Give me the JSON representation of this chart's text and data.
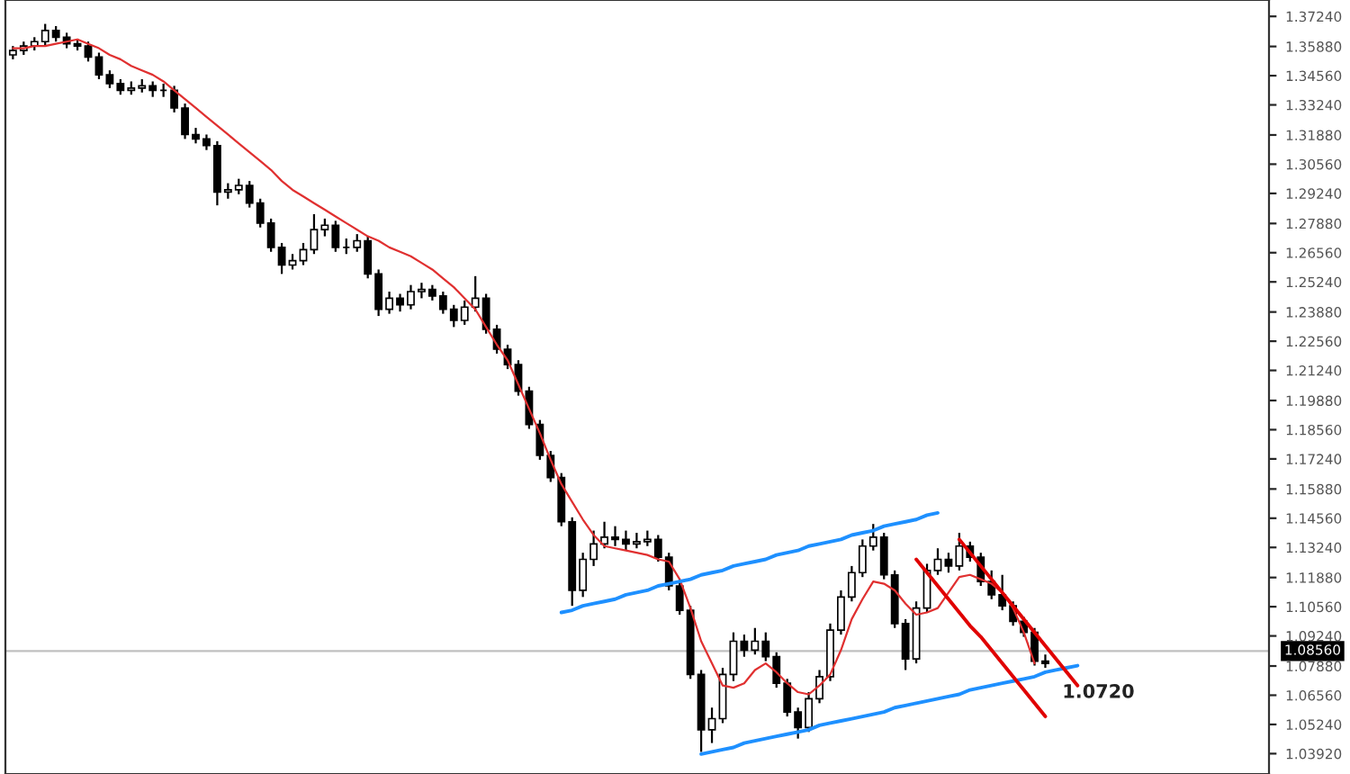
{
  "chart_data": {
    "type": "candlestick",
    "color": "#000000",
    "categories": [
      null,
      null,
      null,
      null,
      null,
      null,
      null,
      null,
      null,
      null,
      null,
      null,
      null,
      null,
      null,
      null,
      null,
      null,
      null,
      null,
      null,
      null,
      null,
      null,
      null,
      null,
      null,
      null,
      null,
      null,
      null,
      null,
      null,
      null,
      null,
      null,
      null,
      null,
      null,
      null,
      null,
      null,
      null,
      null,
      null,
      null,
      null,
      null,
      null,
      null,
      null,
      null,
      null,
      null,
      null,
      null,
      null,
      null,
      null,
      null,
      null,
      null,
      null,
      null,
      null,
      null,
      null,
      null,
      null,
      null,
      null,
      null,
      null,
      null,
      null,
      null,
      null,
      null,
      null,
      null,
      null,
      null,
      null,
      null,
      null,
      null,
      null,
      null,
      null,
      null,
      null,
      null,
      null,
      null,
      null,
      null,
      null,
      null,
      null,
      null,
      null,
      null,
      null,
      null,
      null,
      null,
      null,
      null,
      null,
      null,
      null,
      null,
      null,
      null,
      null,
      null,
      null
    ],
    "ohlc": [
      [
        1.355,
        1.359,
        1.353,
        1.357
      ],
      [
        1.357,
        1.361,
        1.355,
        1.359
      ],
      [
        1.359,
        1.363,
        1.357,
        1.361
      ],
      [
        1.361,
        1.369,
        1.359,
        1.366
      ],
      [
        1.366,
        1.368,
        1.361,
        1.363
      ],
      [
        1.363,
        1.365,
        1.358,
        1.36
      ],
      [
        1.36,
        1.362,
        1.357,
        1.359
      ],
      [
        1.359,
        1.361,
        1.352,
        1.354
      ],
      [
        1.354,
        1.356,
        1.344,
        1.346
      ],
      [
        1.346,
        1.348,
        1.34,
        1.342
      ],
      [
        1.342,
        1.344,
        1.337,
        1.339
      ],
      [
        1.339,
        1.343,
        1.337,
        1.34
      ],
      [
        1.34,
        1.344,
        1.338,
        1.341
      ],
      [
        1.341,
        1.343,
        1.336,
        1.339
      ],
      [
        1.339,
        1.342,
        1.336,
        1.339
      ],
      [
        1.339,
        1.341,
        1.329,
        1.331
      ],
      [
        1.331,
        1.333,
        1.317,
        1.319
      ],
      [
        1.319,
        1.322,
        1.315,
        1.317
      ],
      [
        1.317,
        1.319,
        1.312,
        1.314
      ],
      [
        1.314,
        1.316,
        1.287,
        1.293
      ],
      [
        1.293,
        1.297,
        1.29,
        1.294
      ],
      [
        1.294,
        1.299,
        1.292,
        1.296
      ],
      [
        1.296,
        1.298,
        1.286,
        1.288
      ],
      [
        1.288,
        1.29,
        1.277,
        1.279
      ],
      [
        1.279,
        1.281,
        1.266,
        1.268
      ],
      [
        1.268,
        1.27,
        1.256,
        1.26
      ],
      [
        1.26,
        1.265,
        1.258,
        1.262
      ],
      [
        1.262,
        1.27,
        1.26,
        1.267
      ],
      [
        1.267,
        1.283,
        1.265,
        1.276
      ],
      [
        1.276,
        1.281,
        1.273,
        1.278
      ],
      [
        1.278,
        1.28,
        1.266,
        1.268
      ],
      [
        1.268,
        1.272,
        1.265,
        1.268
      ],
      [
        1.268,
        1.274,
        1.266,
        1.271
      ],
      [
        1.271,
        1.273,
        1.254,
        1.256
      ],
      [
        1.256,
        1.258,
        1.237,
        1.24
      ],
      [
        1.24,
        1.248,
        1.238,
        1.245
      ],
      [
        1.245,
        1.247,
        1.239,
        1.242
      ],
      [
        1.242,
        1.251,
        1.24,
        1.248
      ],
      [
        1.248,
        1.252,
        1.245,
        1.249
      ],
      [
        1.249,
        1.251,
        1.244,
        1.246
      ],
      [
        1.246,
        1.248,
        1.238,
        1.24
      ],
      [
        1.24,
        1.242,
        1.232,
        1.235
      ],
      [
        1.235,
        1.244,
        1.233,
        1.241
      ],
      [
        1.241,
        1.255,
        1.239,
        1.245
      ],
      [
        1.245,
        1.247,
        1.229,
        1.231
      ],
      [
        1.231,
        1.233,
        1.22,
        1.222
      ],
      [
        1.222,
        1.224,
        1.213,
        1.215
      ],
      [
        1.215,
        1.217,
        1.201,
        1.203
      ],
      [
        1.203,
        1.205,
        1.186,
        1.188
      ],
      [
        1.188,
        1.19,
        1.172,
        1.174
      ],
      [
        1.174,
        1.176,
        1.162,
        1.164
      ],
      [
        1.164,
        1.166,
        1.142,
        1.144
      ],
      [
        1.144,
        1.146,
        1.106,
        1.113
      ],
      [
        1.113,
        1.13,
        1.11,
        1.127
      ],
      [
        1.127,
        1.14,
        1.124,
        1.134
      ],
      [
        1.134,
        1.144,
        1.132,
        1.137
      ],
      [
        1.137,
        1.142,
        1.133,
        1.136
      ],
      [
        1.136,
        1.14,
        1.131,
        1.134
      ],
      [
        1.134,
        1.139,
        1.132,
        1.135
      ],
      [
        1.135,
        1.14,
        1.133,
        1.136
      ],
      [
        1.136,
        1.138,
        1.126,
        1.128
      ],
      [
        1.128,
        1.13,
        1.113,
        1.115
      ],
      [
        1.115,
        1.118,
        1.102,
        1.104
      ],
      [
        1.104,
        1.106,
        1.073,
        1.075
      ],
      [
        1.075,
        1.077,
        1.04,
        1.05
      ],
      [
        1.05,
        1.06,
        1.044,
        1.055
      ],
      [
        1.055,
        1.078,
        1.053,
        1.075
      ],
      [
        1.075,
        1.094,
        1.072,
        1.09
      ],
      [
        1.09,
        1.093,
        1.083,
        1.086
      ],
      [
        1.086,
        1.096,
        1.084,
        1.09
      ],
      [
        1.09,
        1.094,
        1.081,
        1.083
      ],
      [
        1.083,
        1.085,
        1.069,
        1.071
      ],
      [
        1.071,
        1.073,
        1.056,
        1.058
      ],
      [
        1.058,
        1.06,
        1.046,
        1.051
      ],
      [
        1.051,
        1.067,
        1.049,
        1.064
      ],
      [
        1.064,
        1.077,
        1.062,
        1.074
      ],
      [
        1.074,
        1.098,
        1.072,
        1.095
      ],
      [
        1.095,
        1.113,
        1.093,
        1.11
      ],
      [
        1.11,
        1.124,
        1.108,
        1.121
      ],
      [
        1.121,
        1.136,
        1.119,
        1.133
      ],
      [
        1.133,
        1.143,
        1.131,
        1.137
      ],
      [
        1.137,
        1.139,
        1.118,
        1.12
      ],
      [
        1.12,
        1.122,
        1.096,
        1.098
      ],
      [
        1.098,
        1.1,
        1.077,
        1.082
      ],
      [
        1.082,
        1.108,
        1.08,
        1.105
      ],
      [
        1.105,
        1.125,
        1.103,
        1.122
      ],
      [
        1.122,
        1.132,
        1.12,
        1.127
      ],
      [
        1.127,
        1.13,
        1.121,
        1.124
      ],
      [
        1.124,
        1.139,
        1.122,
        1.133
      ],
      [
        1.133,
        1.135,
        1.126,
        1.128
      ],
      [
        1.128,
        1.13,
        1.115,
        1.117
      ],
      [
        1.117,
        1.122,
        1.109,
        1.111
      ],
      [
        1.111,
        1.12,
        1.104,
        1.106
      ],
      [
        1.106,
        1.108,
        1.097,
        1.099
      ],
      [
        1.099,
        1.101,
        1.092,
        1.094
      ],
      [
        1.094,
        1.096,
        1.079,
        1.081
      ],
      [
        1.081,
        1.084,
        1.078,
        1.08
      ],
      null,
      null,
      null,
      null,
      null,
      null,
      null,
      null,
      null,
      null,
      null,
      null,
      null,
      null,
      null,
      null,
      null,
      null,
      null,
      null
    ],
    "series": [
      {
        "type": "line",
        "color": "#e03030",
        "values": [
          1.358,
          1.358,
          1.359,
          1.359,
          1.36,
          1.361,
          1.362,
          1.36,
          1.358,
          1.355,
          1.353,
          1.35,
          1.348,
          1.346,
          1.343,
          1.339,
          1.335,
          1.331,
          1.327,
          1.323,
          1.319,
          1.315,
          1.311,
          1.307,
          1.303,
          1.298,
          1.294,
          1.291,
          1.288,
          1.285,
          1.282,
          1.279,
          1.276,
          1.273,
          1.271,
          1.268,
          1.266,
          1.264,
          1.261,
          1.258,
          1.254,
          1.25,
          1.245,
          1.24,
          1.232,
          1.224,
          1.217,
          1.206,
          1.195,
          1.184,
          1.172,
          1.161,
          1.153,
          1.145,
          1.138,
          1.133,
          1.132,
          1.131,
          1.13,
          1.129,
          1.127,
          1.126,
          1.118,
          1.105,
          1.09,
          1.08,
          1.07,
          1.069,
          1.071,
          1.077,
          1.08,
          1.076,
          1.071,
          1.067,
          1.066,
          1.07,
          1.075,
          1.086,
          1.1,
          1.109,
          1.117,
          1.116,
          1.113,
          1.107,
          1.102,
          1.103,
          1.105,
          1.112,
          1.119,
          1.12,
          1.118,
          1.116,
          1.112,
          1.105,
          1.094,
          1.08,
          null,
          null,
          null,
          null,
          null,
          null,
          null,
          null,
          null,
          null,
          null,
          null,
          null,
          null,
          null,
          null,
          null,
          null,
          null,
          null,
          null
        ]
      },
      {
        "type": "line",
        "color": "#1e90ff",
        "values": [
          null,
          null,
          null,
          null,
          null,
          null,
          null,
          null,
          null,
          null,
          null,
          null,
          null,
          null,
          null,
          null,
          null,
          null,
          null,
          null,
          null,
          null,
          null,
          null,
          null,
          null,
          null,
          null,
          null,
          null,
          null,
          null,
          null,
          null,
          null,
          null,
          null,
          null,
          null,
          null,
          null,
          null,
          null,
          null,
          null,
          null,
          null,
          null,
          null,
          null,
          null,
          1.103,
          1.104,
          1.106,
          1.107,
          1.108,
          1.109,
          1.111,
          1.112,
          1.113,
          1.115,
          1.116,
          1.117,
          1.118,
          1.12,
          1.121,
          1.122,
          1.124,
          1.125,
          1.126,
          1.127,
          1.129,
          1.13,
          1.131,
          1.133,
          1.134,
          1.135,
          1.136,
          1.138,
          1.139,
          1.14,
          1.142,
          1.143,
          1.144,
          1.145,
          1.147,
          1.148,
          null,
          null,
          null,
          null,
          null,
          null,
          null,
          null,
          null,
          null,
          null,
          null,
          null,
          null,
          null,
          null,
          null,
          null,
          null,
          null,
          null,
          null,
          null,
          null,
          null,
          null,
          null,
          null,
          null,
          null
        ]
      },
      {
        "type": "line",
        "color": "#1e90ff",
        "values": [
          null,
          null,
          null,
          null,
          null,
          null,
          null,
          null,
          null,
          null,
          null,
          null,
          null,
          null,
          null,
          null,
          null,
          null,
          null,
          null,
          null,
          null,
          null,
          null,
          null,
          null,
          null,
          null,
          null,
          null,
          null,
          null,
          null,
          null,
          null,
          null,
          null,
          null,
          null,
          null,
          null,
          null,
          null,
          null,
          null,
          null,
          null,
          null,
          null,
          null,
          null,
          null,
          null,
          null,
          null,
          null,
          null,
          null,
          null,
          null,
          null,
          null,
          null,
          null,
          1.039,
          1.04,
          1.041,
          1.042,
          1.044,
          1.045,
          1.046,
          1.047,
          1.048,
          1.049,
          1.05,
          1.052,
          1.053,
          1.054,
          1.055,
          1.056,
          1.057,
          1.058,
          1.06,
          1.061,
          1.062,
          1.063,
          1.064,
          1.065,
          1.066,
          1.068,
          1.069,
          1.07,
          1.071,
          1.072,
          1.073,
          1.074,
          1.076,
          1.077,
          1.078,
          1.079,
          null,
          null,
          null,
          null,
          null,
          null,
          null,
          null,
          null,
          null,
          null,
          null,
          null,
          null,
          null,
          null,
          null
        ]
      },
      {
        "type": "line",
        "color": "#e00000",
        "values": [
          null,
          null,
          null,
          null,
          null,
          null,
          null,
          null,
          null,
          null,
          null,
          null,
          null,
          null,
          null,
          null,
          null,
          null,
          null,
          null,
          null,
          null,
          null,
          null,
          null,
          null,
          null,
          null,
          null,
          null,
          null,
          null,
          null,
          null,
          null,
          null,
          null,
          null,
          null,
          null,
          null,
          null,
          null,
          null,
          null,
          null,
          null,
          null,
          null,
          null,
          null,
          null,
          null,
          null,
          null,
          null,
          null,
          null,
          null,
          null,
          null,
          null,
          null,
          null,
          null,
          null,
          null,
          null,
          null,
          null,
          null,
          null,
          null,
          null,
          null,
          null,
          null,
          null,
          null,
          null,
          null,
          null,
          null,
          null,
          null,
          null,
          null,
          null,
          1.136,
          1.13,
          1.124,
          1.118,
          1.112,
          1.106,
          1.1,
          1.094,
          1.088,
          1.082,
          1.076,
          1.07,
          null,
          null,
          null,
          null,
          null,
          null,
          null,
          null,
          null,
          null,
          null,
          null,
          null,
          null,
          null,
          null,
          null
        ]
      },
      {
        "type": "line",
        "color": "#e00000",
        "values": [
          null,
          null,
          null,
          null,
          null,
          null,
          null,
          null,
          null,
          null,
          null,
          null,
          null,
          null,
          null,
          null,
          null,
          null,
          null,
          null,
          null,
          null,
          null,
          null,
          null,
          null,
          null,
          null,
          null,
          null,
          null,
          null,
          null,
          null,
          null,
          null,
          null,
          null,
          null,
          null,
          null,
          null,
          null,
          null,
          null,
          null,
          null,
          null,
          null,
          null,
          null,
          null,
          null,
          null,
          null,
          null,
          null,
          null,
          null,
          null,
          null,
          null,
          null,
          null,
          null,
          null,
          null,
          null,
          null,
          null,
          null,
          null,
          null,
          null,
          null,
          null,
          null,
          null,
          null,
          null,
          null,
          null,
          null,
          null,
          1.127,
          1.121,
          1.115,
          1.109,
          1.103,
          1.097,
          1.092,
          1.086,
          1.08,
          1.074,
          1.068,
          1.062,
          1.056,
          null,
          null,
          null,
          null,
          null,
          null,
          null,
          null,
          null,
          null,
          null,
          null,
          null,
          null,
          null,
          null,
          null,
          null,
          null,
          null
        ]
      }
    ],
    "ylim": [
      1.03,
      1.3798
    ],
    "yticks": [
      {
        "value": 1.3724,
        "label": "1.37240"
      },
      {
        "value": 1.3588,
        "label": "1.35880"
      },
      {
        "value": 1.3456,
        "label": "1.34560"
      },
      {
        "value": 1.3324,
        "label": "1.33240"
      },
      {
        "value": 1.3188,
        "label": "1.31880"
      },
      {
        "value": 1.3056,
        "label": "1.30560"
      },
      {
        "value": 1.2924,
        "label": "1.29240"
      },
      {
        "value": 1.2788,
        "label": "1.27880"
      },
      {
        "value": 1.2656,
        "label": "1.26560"
      },
      {
        "value": 1.2524,
        "label": "1.25240"
      },
      {
        "value": 1.2388,
        "label": "1.23880"
      },
      {
        "value": 1.2256,
        "label": "1.22560"
      },
      {
        "value": 1.2124,
        "label": "1.21240"
      },
      {
        "value": 1.1988,
        "label": "1.19880"
      },
      {
        "value": 1.1856,
        "label": "1.18560"
      },
      {
        "value": 1.1724,
        "label": "1.17240"
      },
      {
        "value": 1.1588,
        "label": "1.15880"
      },
      {
        "value": 1.1456,
        "label": "1.14560"
      },
      {
        "value": 1.1324,
        "label": "1.13240"
      },
      {
        "value": 1.1188,
        "label": "1.11880"
      },
      {
        "value": 1.1056,
        "label": "1.10560"
      },
      {
        "value": 1.0924,
        "label": "1.09240"
      },
      {
        "value": 1.0788,
        "label": "1.07880"
      },
      {
        "value": 1.0656,
        "label": "1.06560"
      },
      {
        "value": 1.0524,
        "label": "1.05240"
      },
      {
        "value": 1.0392,
        "label": "1.03920"
      }
    ],
    "ref_lines": [
      {
        "axis": "y",
        "value": 1.0856,
        "label": "1.08560",
        "color": "#c0c0c0"
      }
    ],
    "annotations": [
      "1.0720"
    ],
    "tick_labels": "y"
  }
}
